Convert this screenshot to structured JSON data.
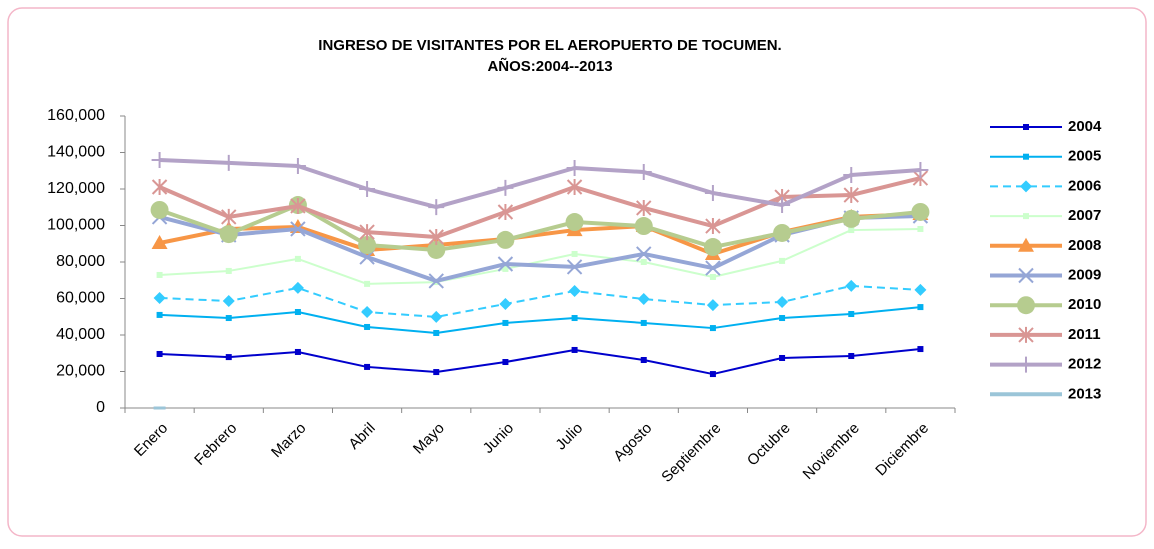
{
  "chart_data": {
    "type": "line",
    "title_lines": [
      "INGRESO DE VISITANTES POR EL AEROPUERTO DE TOCUMEN.",
      "AÑOS:2004--2013"
    ],
    "categories": [
      "Enero",
      "Febrero",
      "Marzo",
      "Abril",
      "Mayo",
      "Junio",
      "Julio",
      "Agosto",
      "Septiembre",
      "Octubre",
      "Noviembre",
      "Diciembre"
    ],
    "ylim": [
      0,
      160000
    ],
    "yticks": [
      0,
      {
        "value": 20000,
        "label": "20,000"
      },
      {
        "value": 40000,
        "label": "40,000"
      },
      {
        "value": 60000,
        "label": "60,000"
      },
      {
        "value": 80000,
        "label": "80,000"
      },
      {
        "value": 100000,
        "label": "100,000"
      },
      {
        "value": 120000,
        "label": "120,000"
      },
      {
        "value": 140000,
        "label": "140,000"
      },
      {
        "value": 160000,
        "label": "160,000"
      }
    ],
    "legend": "right",
    "series": [
      {
        "name": "2004",
        "color": "#0000cc",
        "marker": "square",
        "line_width": 2,
        "values": [
          29600,
          27900,
          30700,
          22500,
          19700,
          25200,
          31800,
          26300,
          18600,
          27400,
          28500,
          32300
        ]
      },
      {
        "name": "2005",
        "color": "#00b0f0",
        "marker": "square",
        "line_width": 2,
        "values": [
          51000,
          49300,
          52600,
          44400,
          41100,
          46600,
          49300,
          46600,
          43800,
          49300,
          51500,
          55300
        ]
      },
      {
        "name": "2006",
        "color": "#33ccff",
        "marker": "diamond",
        "line_width": 2,
        "dashed": true,
        "values": [
          60300,
          58600,
          65800,
          52600,
          49900,
          57000,
          64100,
          59700,
          56400,
          58100,
          66900,
          64700
        ]
      },
      {
        "name": "2007",
        "color": "#ccffcc",
        "marker": "square",
        "line_width": 2,
        "values": [
          72900,
          75100,
          81700,
          68000,
          69000,
          76200,
          84400,
          80000,
          71800,
          80600,
          97500,
          98100
        ]
      },
      {
        "name": "2008",
        "color": "#f79646",
        "marker": "triangle",
        "line_width": 4,
        "values": [
          90400,
          98100,
          99200,
          86600,
          89300,
          92600,
          97500,
          99700,
          84400,
          96400,
          104700,
          106300
        ]
      },
      {
        "name": "2009",
        "color": "#95a6d6",
        "marker": "x",
        "line_width": 4,
        "values": [
          104700,
          94800,
          98100,
          82700,
          69600,
          78900,
          77300,
          84400,
          76700,
          94800,
          104100,
          105200
        ]
      },
      {
        "name": "2010",
        "color": "#b6cc8f",
        "marker": "circle",
        "line_width": 4,
        "values": [
          108500,
          95300,
          111200,
          89300,
          86600,
          92100,
          101900,
          99700,
          88200,
          95900,
          103600,
          107400
        ]
      },
      {
        "name": "2011",
        "color": "#d99694",
        "marker": "star",
        "line_width": 4,
        "values": [
          121100,
          104700,
          110700,
          96400,
          93700,
          107400,
          121100,
          109600,
          99700,
          115600,
          116700,
          126000
        ]
      },
      {
        "name": "2012",
        "color": "#b3a2c7",
        "marker": "plus",
        "line_width": 4,
        "values": [
          135900,
          134300,
          132600,
          120000,
          110100,
          120600,
          131500,
          129300,
          117800,
          111200,
          127700,
          130400
        ]
      },
      {
        "name": "2013",
        "color": "#9bc5d8",
        "marker": "dash",
        "line_width": 4,
        "values": [
          0,
          null,
          null,
          null,
          null,
          null,
          null,
          null,
          null,
          null,
          null,
          null
        ]
      }
    ]
  }
}
